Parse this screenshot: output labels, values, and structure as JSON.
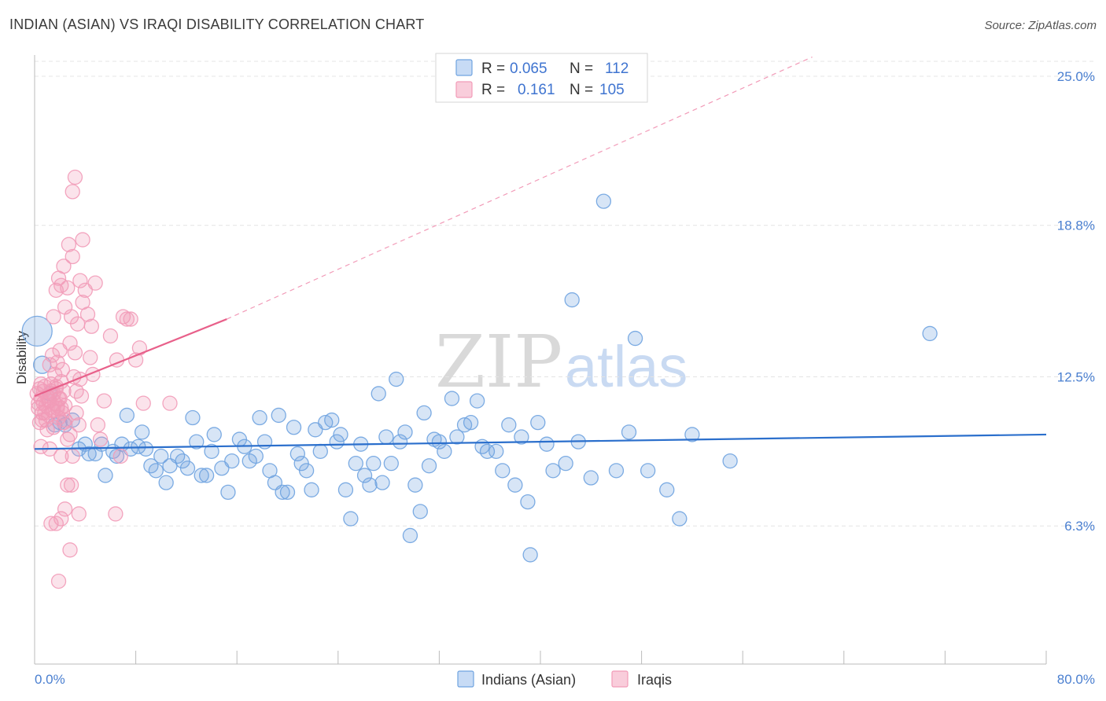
{
  "chart_data": {
    "type": "scatter",
    "title": "INDIAN (ASIAN) VS IRAQI DISABILITY CORRELATION CHART",
    "source": "Source: ZipAtlas.com",
    "xlabel": "",
    "ylabel": "Disability",
    "xlim": [
      0,
      80
    ],
    "ylim": [
      0,
      26.5
    ],
    "x_tick_labels": {
      "left": "0.0%",
      "right": "80.0%"
    },
    "y_ticks": [
      {
        "value": 6.3,
        "label": "6.3%"
      },
      {
        "value": 12.5,
        "label": "12.5%"
      },
      {
        "value": 18.8,
        "label": "18.8%"
      },
      {
        "value": 25.0,
        "label": "25.0%"
      }
    ],
    "watermark": {
      "part1": "ZIP",
      "part2": "atlas"
    },
    "legend": {
      "rows": [
        {
          "series": "Indians (Asian)",
          "r_label": "R =",
          "r_value": "0.065",
          "n_label": "N =",
          "n_value": "112"
        },
        {
          "series": "Iraqis",
          "r_label": "R =",
          "r_value": "0.161",
          "n_label": "N =",
          "n_value": "105"
        }
      ]
    },
    "series": [
      {
        "name": "Indians (Asian)",
        "color": "#6fa3e0",
        "line_color": "#2b6fcc",
        "trend": {
          "x0": 0,
          "y0": 9.5,
          "x1": 80,
          "y1": 10.1
        },
        "points": [
          [
            0.2,
            14.4,
            18
          ],
          [
            0.6,
            13.0,
            10
          ],
          [
            1.2,
            11.8,
            8
          ],
          [
            1.6,
            10.5,
            8
          ],
          [
            2.0,
            10.6,
            8
          ],
          [
            2.4,
            10.5,
            8
          ],
          [
            3.0,
            10.7,
            8
          ],
          [
            3.5,
            9.5,
            8
          ],
          [
            4.0,
            9.7,
            8
          ],
          [
            4.3,
            9.3,
            8
          ],
          [
            4.8,
            9.3,
            8
          ],
          [
            5.3,
            9.7,
            8
          ],
          [
            5.6,
            8.4,
            8
          ],
          [
            6.2,
            9.4,
            8
          ],
          [
            6.5,
            9.2,
            8
          ],
          [
            6.9,
            9.7,
            8
          ],
          [
            7.3,
            10.9,
            8
          ],
          [
            7.6,
            9.5,
            8
          ],
          [
            8.2,
            9.6,
            8
          ],
          [
            8.5,
            10.2,
            8
          ],
          [
            8.8,
            9.5,
            8
          ],
          [
            9.2,
            8.8,
            8
          ],
          [
            9.6,
            8.6,
            8
          ],
          [
            10.0,
            9.2,
            8
          ],
          [
            10.4,
            8.1,
            8
          ],
          [
            10.7,
            8.8,
            8
          ],
          [
            11.3,
            9.2,
            8
          ],
          [
            11.7,
            9.0,
            8
          ],
          [
            12.1,
            8.7,
            8
          ],
          [
            12.5,
            10.8,
            8
          ],
          [
            12.8,
            9.8,
            8
          ],
          [
            13.2,
            8.4,
            8
          ],
          [
            13.6,
            8.4,
            8
          ],
          [
            14.0,
            9.4,
            8
          ],
          [
            14.2,
            10.1,
            8
          ],
          [
            14.8,
            8.7,
            8
          ],
          [
            15.3,
            7.7,
            8
          ],
          [
            15.6,
            9.0,
            8
          ],
          [
            16.2,
            9.9,
            8
          ],
          [
            16.6,
            9.6,
            8
          ],
          [
            17.0,
            9.0,
            8
          ],
          [
            17.5,
            9.2,
            8
          ],
          [
            17.8,
            10.8,
            8
          ],
          [
            18.2,
            9.8,
            8
          ],
          [
            18.6,
            8.6,
            8
          ],
          [
            19.0,
            8.1,
            8
          ],
          [
            19.3,
            10.9,
            8
          ],
          [
            19.6,
            7.7,
            8
          ],
          [
            20.0,
            7.7,
            8
          ],
          [
            20.5,
            10.4,
            8
          ],
          [
            20.8,
            9.3,
            8
          ],
          [
            21.1,
            8.9,
            8
          ],
          [
            21.5,
            8.6,
            8
          ],
          [
            21.9,
            7.8,
            8
          ],
          [
            22.2,
            10.3,
            8
          ],
          [
            22.6,
            9.4,
            8
          ],
          [
            23.0,
            10.6,
            8
          ],
          [
            23.5,
            10.7,
            8
          ],
          [
            23.9,
            9.8,
            8
          ],
          [
            24.2,
            10.1,
            8
          ],
          [
            24.6,
            7.8,
            8
          ],
          [
            25.0,
            6.6,
            8
          ],
          [
            25.4,
            8.9,
            8
          ],
          [
            25.8,
            9.7,
            8
          ],
          [
            26.1,
            8.4,
            8
          ],
          [
            26.5,
            8.0,
            8
          ],
          [
            26.8,
            8.9,
            8
          ],
          [
            27.2,
            11.8,
            8
          ],
          [
            27.5,
            8.1,
            8
          ],
          [
            27.8,
            10.0,
            8
          ],
          [
            28.2,
            8.9,
            8
          ],
          [
            28.6,
            12.4,
            8
          ],
          [
            28.9,
            9.8,
            8
          ],
          [
            29.3,
            10.2,
            8
          ],
          [
            29.7,
            5.9,
            8
          ],
          [
            30.1,
            8.0,
            8
          ],
          [
            30.5,
            6.9,
            8
          ],
          [
            30.8,
            11.0,
            8
          ],
          [
            31.2,
            8.8,
            8
          ],
          [
            31.6,
            9.9,
            8
          ],
          [
            32.0,
            9.8,
            8
          ],
          [
            32.4,
            9.4,
            8
          ],
          [
            33.0,
            11.6,
            8
          ],
          [
            33.4,
            10.0,
            8
          ],
          [
            34.0,
            10.5,
            8
          ],
          [
            34.5,
            10.6,
            8
          ],
          [
            35.0,
            11.5,
            8
          ],
          [
            35.4,
            9.6,
            8
          ],
          [
            35.8,
            9.4,
            8
          ],
          [
            36.5,
            9.4,
            8
          ],
          [
            37.0,
            8.6,
            8
          ],
          [
            37.5,
            10.5,
            8
          ],
          [
            38.0,
            8.0,
            8
          ],
          [
            38.5,
            10.0,
            8
          ],
          [
            39.0,
            7.3,
            8
          ],
          [
            39.2,
            5.1,
            8
          ],
          [
            39.8,
            10.6,
            8
          ],
          [
            40.5,
            9.7,
            8
          ],
          [
            41.0,
            8.6,
            8
          ],
          [
            42.0,
            8.9,
            8
          ],
          [
            43.0,
            9.8,
            8
          ],
          [
            44.0,
            8.3,
            8
          ],
          [
            45.0,
            19.8,
            8
          ],
          [
            46.0,
            8.6,
            8
          ],
          [
            47.0,
            10.2,
            8
          ],
          [
            47.5,
            14.1,
            8
          ],
          [
            48.5,
            8.6,
            8
          ],
          [
            50.0,
            7.8,
            8
          ],
          [
            51.0,
            6.6,
            8
          ],
          [
            52.0,
            10.1,
            8
          ],
          [
            55.0,
            9.0,
            8
          ],
          [
            70.8,
            14.3,
            8
          ],
          [
            42.5,
            15.7,
            8
          ]
        ]
      },
      {
        "name": "Iraqis",
        "color": "#f29bb8",
        "line_color": "#e8608a",
        "trend": {
          "x0": 0,
          "y0": 11.7,
          "x1": 15.2,
          "y1": 14.9
        },
        "trend_dashed": {
          "x0": 15.2,
          "y0": 14.9,
          "x1": 61.5,
          "y1": 25.8
        },
        "points": [
          [
            0.2,
            11.8,
            8
          ],
          [
            0.3,
            11.2,
            8
          ],
          [
            0.4,
            12.0,
            8
          ],
          [
            0.5,
            11.6,
            8
          ],
          [
            0.6,
            11.0,
            8
          ],
          [
            0.7,
            11.4,
            8
          ],
          [
            0.8,
            12.1,
            8
          ],
          [
            0.9,
            11.3,
            8
          ],
          [
            1.0,
            11.7,
            8
          ],
          [
            1.1,
            10.9,
            8
          ],
          [
            1.2,
            11.5,
            8
          ],
          [
            1.3,
            12.2,
            8
          ],
          [
            1.4,
            11.1,
            8
          ],
          [
            1.5,
            11.8,
            8
          ],
          [
            1.6,
            11.4,
            8
          ],
          [
            1.7,
            12.0,
            8
          ],
          [
            1.8,
            11.2,
            8
          ],
          [
            1.9,
            10.8,
            8
          ],
          [
            2.0,
            11.6,
            8
          ],
          [
            2.1,
            12.3,
            8
          ],
          [
            2.2,
            11.0,
            8
          ],
          [
            2.3,
            11.9,
            8
          ],
          [
            2.4,
            11.3,
            8
          ],
          [
            0.4,
            10.6,
            8
          ],
          [
            0.6,
            10.7,
            8
          ],
          [
            0.8,
            11.0,
            8
          ],
          [
            0.5,
            9.6,
            8
          ],
          [
            1.0,
            10.3,
            8
          ],
          [
            1.2,
            13.0,
            8
          ],
          [
            1.4,
            13.4,
            8
          ],
          [
            1.6,
            12.6,
            8
          ],
          [
            1.8,
            13.1,
            8
          ],
          [
            2.0,
            13.6,
            8
          ],
          [
            2.2,
            12.8,
            8
          ],
          [
            1.5,
            15.0,
            8
          ],
          [
            1.7,
            16.1,
            8
          ],
          [
            1.9,
            16.6,
            8
          ],
          [
            2.1,
            16.3,
            8
          ],
          [
            2.3,
            17.1,
            8
          ],
          [
            2.4,
            15.4,
            8
          ],
          [
            2.6,
            16.2,
            8
          ],
          [
            2.7,
            18.0,
            8
          ],
          [
            2.8,
            13.9,
            8
          ],
          [
            2.9,
            15.0,
            8
          ],
          [
            3.0,
            17.5,
            8
          ],
          [
            3.2,
            13.5,
            8
          ],
          [
            3.4,
            14.7,
            8
          ],
          [
            3.6,
            16.5,
            8
          ],
          [
            3.8,
            15.6,
            8
          ],
          [
            4.0,
            16.1,
            8
          ],
          [
            4.2,
            15.1,
            8
          ],
          [
            4.5,
            14.6,
            8
          ],
          [
            3.0,
            20.2,
            8
          ],
          [
            3.2,
            20.8,
            8
          ],
          [
            3.8,
            18.2,
            8
          ],
          [
            4.4,
            13.3,
            8
          ],
          [
            4.6,
            12.6,
            8
          ],
          [
            4.8,
            16.4,
            8
          ],
          [
            5.0,
            10.5,
            8
          ],
          [
            5.2,
            9.9,
            8
          ],
          [
            5.5,
            11.5,
            8
          ],
          [
            6.0,
            14.2,
            8
          ],
          [
            6.5,
            13.2,
            8
          ],
          [
            6.8,
            9.2,
            8
          ],
          [
            7.0,
            15.0,
            8
          ],
          [
            7.3,
            14.9,
            8
          ],
          [
            7.6,
            14.9,
            8
          ],
          [
            8.0,
            13.2,
            8
          ],
          [
            8.3,
            13.7,
            8
          ],
          [
            8.6,
            11.4,
            8
          ],
          [
            10.7,
            11.4,
            8
          ],
          [
            1.2,
            9.5,
            8
          ],
          [
            1.5,
            10.4,
            8
          ],
          [
            1.8,
            11.3,
            8
          ],
          [
            2.1,
            9.2,
            8
          ],
          [
            2.4,
            10.7,
            8
          ],
          [
            2.6,
            9.9,
            8
          ],
          [
            2.8,
            10.1,
            8
          ],
          [
            3.0,
            9.2,
            8
          ],
          [
            3.3,
            11.0,
            8
          ],
          [
            3.6,
            12.4,
            8
          ],
          [
            1.3,
            6.4,
            8
          ],
          [
            1.7,
            6.4,
            8
          ],
          [
            2.1,
            6.6,
            8
          ],
          [
            2.4,
            7.0,
            8
          ],
          [
            2.6,
            8.0,
            8
          ],
          [
            2.9,
            8.0,
            8
          ],
          [
            3.5,
            6.8,
            8
          ],
          [
            2.8,
            5.3,
            8
          ],
          [
            1.9,
            4.0,
            8
          ],
          [
            6.4,
            6.8,
            8
          ],
          [
            0.3,
            11.4,
            8
          ],
          [
            0.5,
            12.2,
            8
          ],
          [
            0.7,
            11.9,
            8
          ],
          [
            0.9,
            10.7,
            8
          ],
          [
            1.1,
            11.5,
            8
          ],
          [
            1.3,
            11.9,
            8
          ],
          [
            1.5,
            11.1,
            8
          ],
          [
            1.7,
            12.1,
            8
          ],
          [
            1.9,
            11.6,
            8
          ],
          [
            2.1,
            11.2,
            8
          ],
          [
            2.3,
            10.6,
            8
          ],
          [
            3.1,
            12.5,
            8
          ],
          [
            3.3,
            11.9,
            8
          ],
          [
            3.5,
            10.5,
            8
          ],
          [
            3.7,
            11.7,
            8
          ]
        ]
      }
    ]
  }
}
